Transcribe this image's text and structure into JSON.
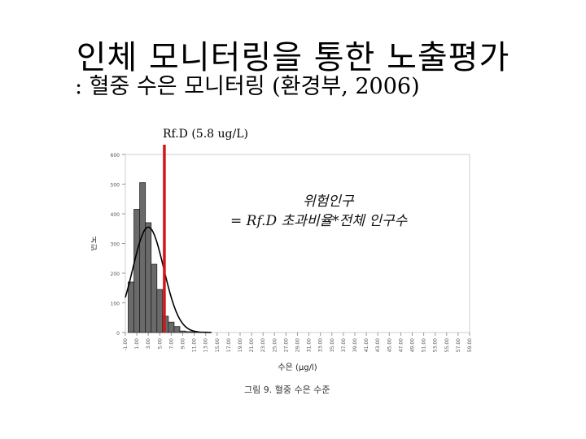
{
  "slide": {
    "title": "인체 모니터링을 통한 노출평가",
    "subtitle": ": 혈중 수은 모니터링 (환경부, 2006)",
    "rfd_label": "Rf.D (5.8 ug/L)",
    "annotation_line1": "위험인구",
    "annotation_line2": "= Rf.D 초과비율*전체 인구수",
    "caption": "그림 9. 혈중 수은 수준"
  },
  "chart_data": {
    "type": "bar",
    "overlay": "normal-curve",
    "xlabel": "수은 (μg/l)",
    "ylabel": "빈도",
    "ylim": [
      0,
      600
    ],
    "yticks": [
      0,
      100,
      200,
      300,
      400,
      500,
      600
    ],
    "xlim": [
      -1,
      59
    ],
    "xticks": [
      "-1.00",
      "1.00",
      "3.00",
      "5.00",
      "7.00",
      "9.00",
      "11.00",
      "13.00",
      "15.00",
      "17.00",
      "19.00",
      "21.00",
      "23.00",
      "25.00",
      "27.00",
      "29.00",
      "31.00",
      "33.00",
      "35.00",
      "37.00",
      "39.00",
      "41.00",
      "43.00",
      "45.00",
      "47.00",
      "49.00",
      "51.00",
      "53.00",
      "55.00",
      "57.00",
      "59.00"
    ],
    "bin_width": 1,
    "bins": [
      {
        "x": 0,
        "value": 170
      },
      {
        "x": 1,
        "value": 415
      },
      {
        "x": 2,
        "value": 505
      },
      {
        "x": 3,
        "value": 370
      },
      {
        "x": 4,
        "value": 230
      },
      {
        "x": 5,
        "value": 145
      },
      {
        "x": 6,
        "value": 55
      },
      {
        "x": 7,
        "value": 35
      },
      {
        "x": 8,
        "value": 20
      },
      {
        "x": 9,
        "value": 5
      },
      {
        "x": 10,
        "value": 3
      },
      {
        "x": 11,
        "value": 2
      },
      {
        "x": 12,
        "value": 1
      }
    ],
    "curve": {
      "mean": 3.0,
      "sd": 2.7,
      "peak": 355
    },
    "rfd_line": {
      "x": 5.8,
      "color": "#d01818"
    },
    "colors": {
      "bar_fill": "#6a6a6a",
      "bar_stroke": "#222222",
      "curve": "#000000",
      "axis": "#999999"
    }
  }
}
